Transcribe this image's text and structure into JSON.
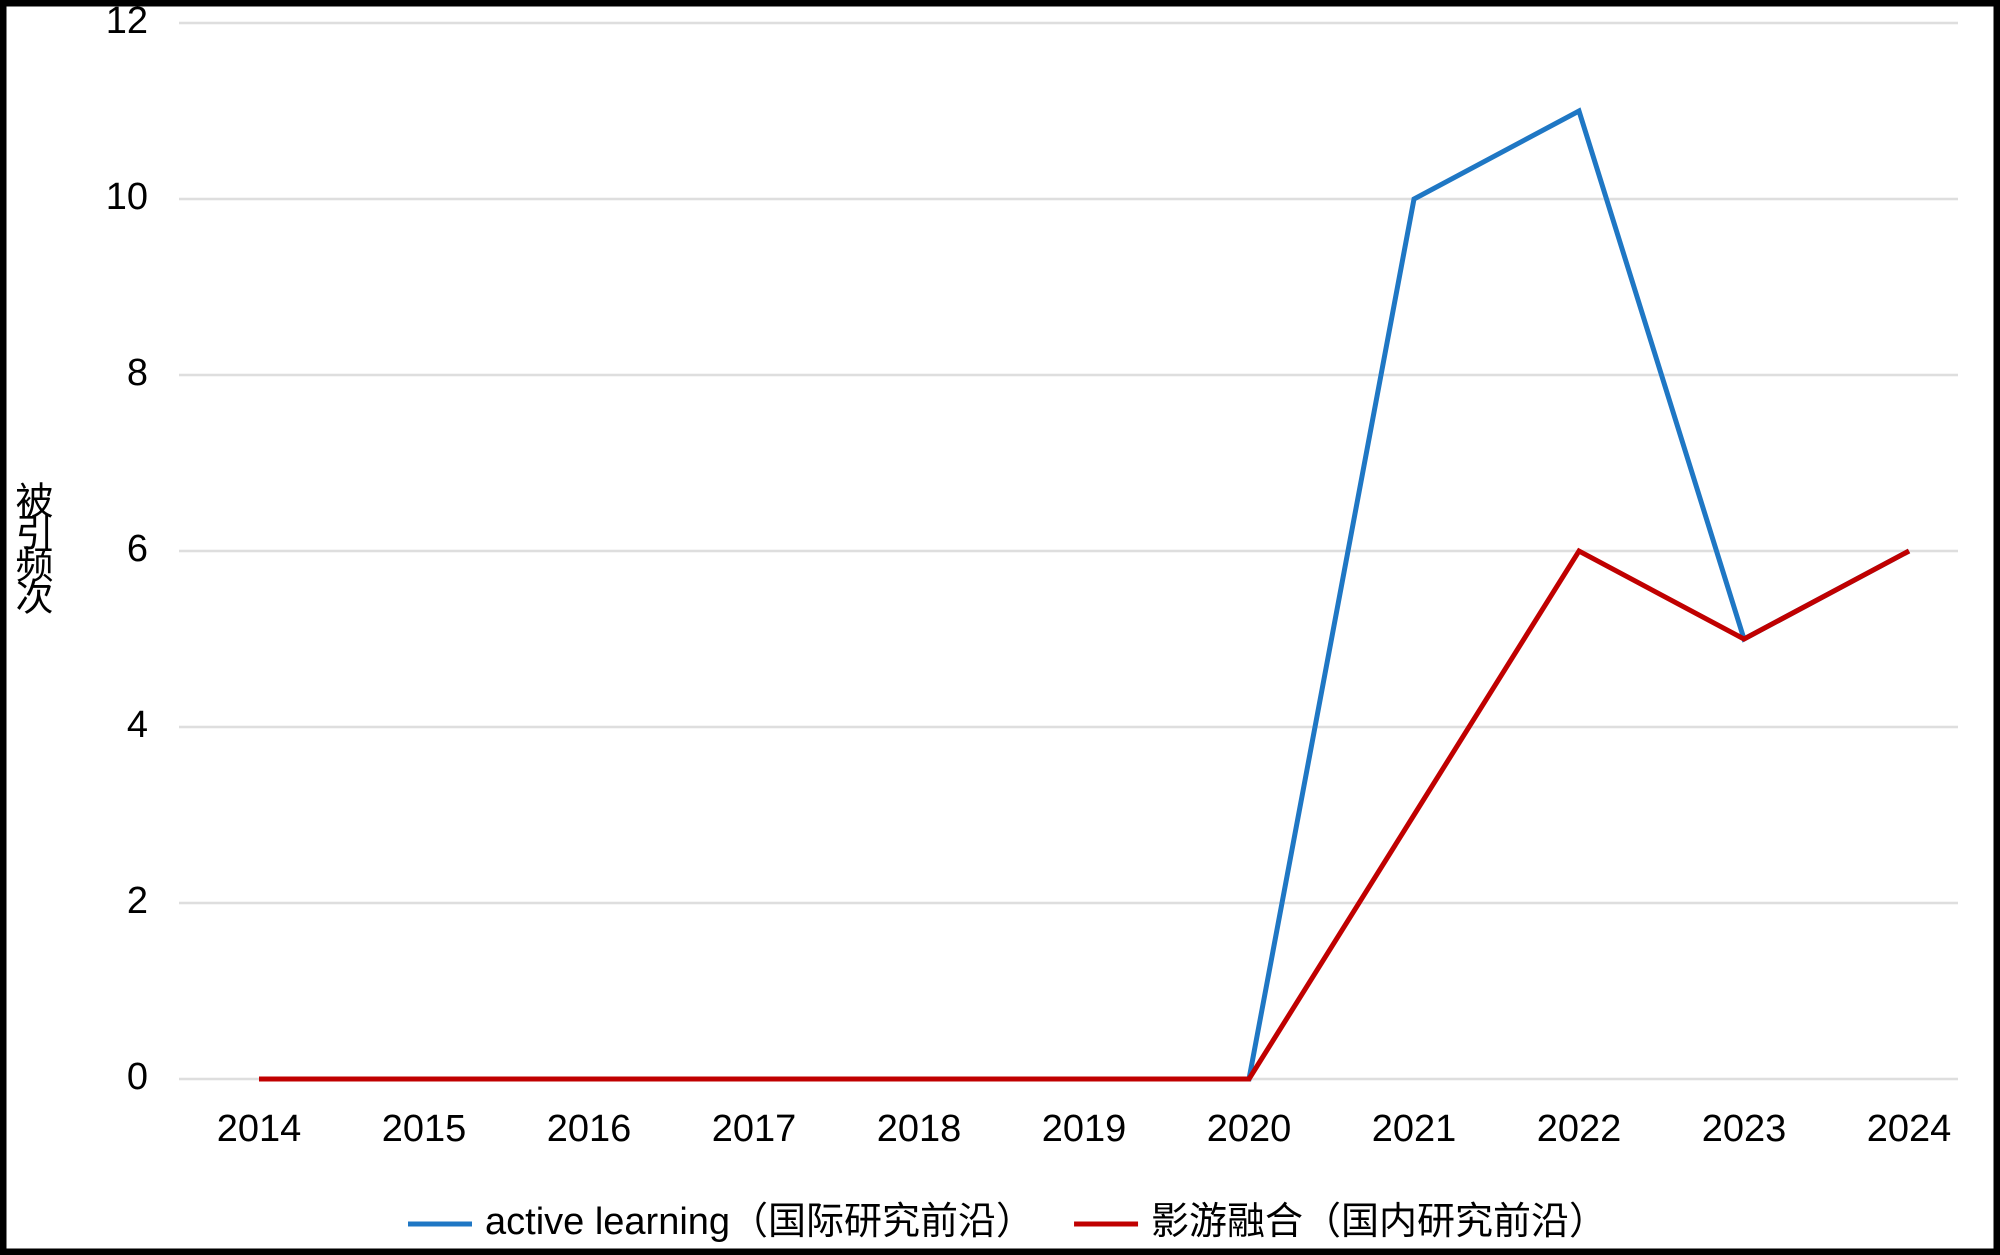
{
  "chart_data": {
    "type": "line",
    "y_label": "被引频次",
    "categories": [
      "2014",
      "2015",
      "2016",
      "2017",
      "2018",
      "2019",
      "2020",
      "2021",
      "2022",
      "2023",
      "2024"
    ],
    "series": [
      {
        "name": "active learning（国际研究前沿）",
        "color": "#1f77c4",
        "values": [
          0,
          0,
          0,
          0,
          0,
          0,
          0,
          10,
          11,
          5,
          6
        ]
      },
      {
        "name": "影游融合（国内研究前沿）",
        "color": "#c00000",
        "values": [
          0,
          0,
          0,
          0,
          0,
          0,
          0,
          3,
          6,
          5,
          6
        ]
      }
    ],
    "ylim": [
      0,
      12
    ],
    "yticks": [
      0,
      2,
      4,
      6,
      8,
      10,
      12
    ],
    "grid": true,
    "legend": "bottom"
  }
}
